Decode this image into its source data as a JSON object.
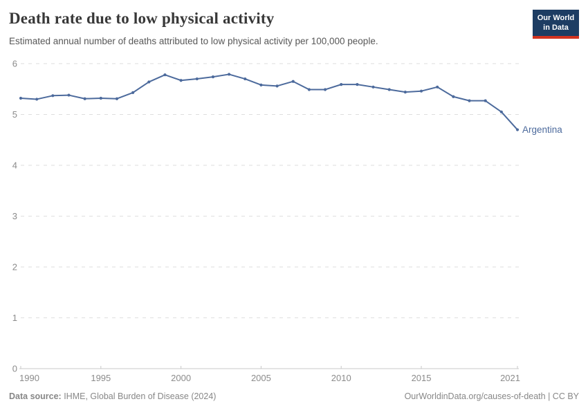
{
  "header": {
    "title": "Death rate due to low physical activity",
    "subtitle": "Estimated annual number of deaths attributed to low physical activity per 100,000 people.",
    "logo": {
      "line1": "Our World",
      "line2": "in Data"
    }
  },
  "colors": {
    "accent_line": "#4c6a9c",
    "logo_bg": "#1d3d63",
    "logo_red": "#d2331f",
    "grid": "#dedede",
    "axis": "#c8c8c8",
    "tick_label": "#8b8b8b",
    "title": "#383838",
    "subtitle": "#575757",
    "footer": "#878787"
  },
  "chart_data": {
    "type": "line",
    "title": "Death rate due to low physical activity",
    "xlabel": "",
    "ylabel": "",
    "xlim": [
      1990,
      2021
    ],
    "ylim": [
      0,
      6
    ],
    "xticks": [
      1990,
      1995,
      2000,
      2005,
      2010,
      2015,
      2021
    ],
    "yticks": [
      0,
      1,
      2,
      3,
      4,
      5,
      6
    ],
    "grid": "horizontal-dashed",
    "legend_position": "end-of-line-label",
    "series": [
      {
        "name": "Argentina",
        "color": "#4c6a9c",
        "x": [
          1990,
          1991,
          1992,
          1993,
          1994,
          1995,
          1996,
          1997,
          1998,
          1999,
          2000,
          2001,
          2002,
          2003,
          2004,
          2005,
          2006,
          2007,
          2008,
          2009,
          2010,
          2011,
          2012,
          2013,
          2014,
          2015,
          2016,
          2017,
          2018,
          2019,
          2020,
          2021
        ],
        "values": [
          5.32,
          5.3,
          5.37,
          5.38,
          5.31,
          5.32,
          5.31,
          5.43,
          5.64,
          5.78,
          5.67,
          5.7,
          5.74,
          5.79,
          5.7,
          5.58,
          5.56,
          5.65,
          5.49,
          5.49,
          5.59,
          5.59,
          5.54,
          5.49,
          5.44,
          5.46,
          5.54,
          5.35,
          5.27,
          5.27,
          5.05,
          4.7
        ]
      }
    ]
  },
  "footer": {
    "source_label": "Data source:",
    "source_text": " IHME, Global Burden of Disease (2024)",
    "link_text": "OurWorldinData.org/causes-of-death | CC BY"
  }
}
